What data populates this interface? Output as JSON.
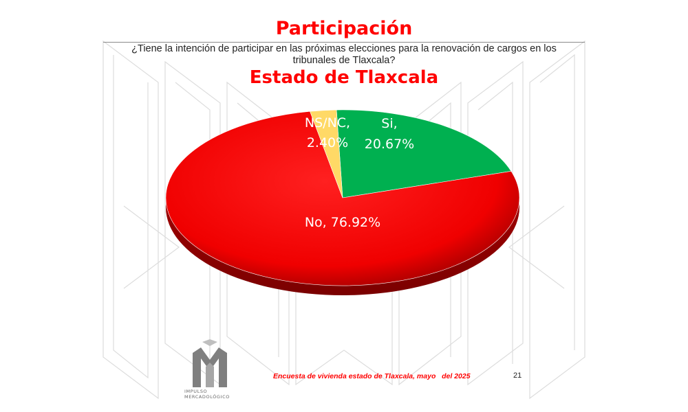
{
  "slide": {
    "title": "Participación",
    "question": "¿Tiene la intención de participar en las próximas elecciones para la renovación de cargos en los tribunales de Tlaxcala?",
    "subtitle": "Estado de Tlaxcala",
    "footer": "Encuesta de vivienda estado de Tlaxcala, mayo   del 2025",
    "page_number": "21",
    "logo_text": [
      "IMPULSO",
      "MERCADOLÓGICO"
    ],
    "colors": {
      "title": "#ff0000",
      "footer": "#ff0000"
    }
  },
  "chart_data": {
    "type": "pie",
    "title": "Estado de Tlaxcala",
    "slices": [
      {
        "name": "Si",
        "value": 20.67,
        "label": [
          "Si,",
          "20.67%"
        ],
        "color": "#00b050"
      },
      {
        "name": "No",
        "value": 76.92,
        "label": [
          "No, 76.92%"
        ],
        "color": "#ff0000"
      },
      {
        "name": "NS/NC",
        "value": 2.4,
        "label": [
          "NS/NC,",
          "2.40%"
        ],
        "color": "#ffd966"
      }
    ],
    "legend": "none",
    "style": "3d-tilted"
  }
}
